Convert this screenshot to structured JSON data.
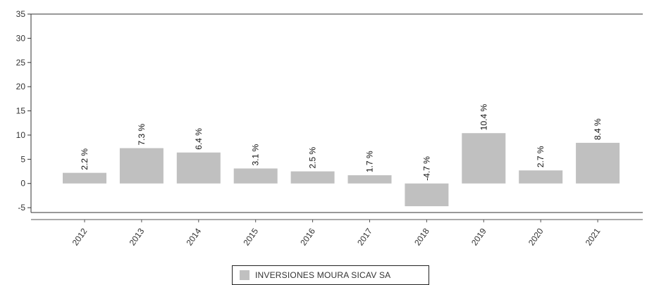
{
  "chart_data": {
    "type": "bar",
    "categories": [
      "2012",
      "2013",
      "2014",
      "2015",
      "2016",
      "2017",
      "2018",
      "2019",
      "2020",
      "2021"
    ],
    "series": [
      {
        "name": "INVERSIONES MOURA SICAV SA",
        "values": [
          2.2,
          7.3,
          6.4,
          3.1,
          2.5,
          1.7,
          -4.7,
          10.4,
          2.7,
          8.4
        ],
        "labels": [
          "2.2 %",
          "7.3 %",
          "6.4 %",
          "3.1 %",
          "2.5 %",
          "1.7 %",
          "-4.7 %",
          "10.4 %",
          "2.7 %",
          "8.4 %"
        ],
        "color": "#c0c0c0"
      }
    ],
    "ylim": [
      -6,
      35
    ],
    "yticks": [
      -5,
      0,
      5,
      10,
      15,
      20,
      25,
      30,
      35
    ],
    "ytick_labels": [
      "-5",
      "0",
      "5",
      "10",
      "15",
      "20",
      "25",
      "30",
      "35"
    ],
    "grid": false,
    "legend_position": "bottom"
  }
}
